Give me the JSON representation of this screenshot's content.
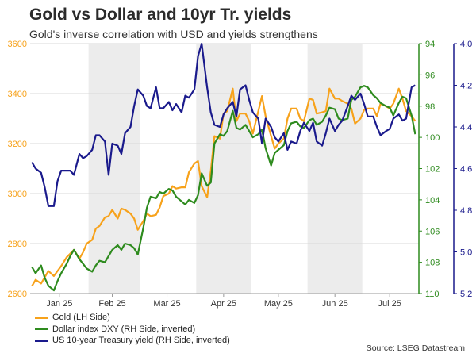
{
  "title": "Gold vs Dollar and 10yr Tr. yields",
  "subtitle": "Gold's inverse correlation with USD and yields strengthens",
  "source": "Source: LSEG Datastream",
  "colors": {
    "gold": "#f7a21b",
    "dxy": "#2e8b1e",
    "yield": "#1a1a8c",
    "shade": "#ececec",
    "grid": "#d9d9d9"
  },
  "chart_data": {
    "type": "line",
    "x": [
      "2025-01-01",
      "2025-01-03",
      "2025-01-06",
      "2025-01-08",
      "2025-01-10",
      "2025-01-13",
      "2025-01-15",
      "2025-01-17",
      "2025-01-20",
      "2025-01-22",
      "2025-01-24",
      "2025-01-27",
      "2025-01-29",
      "2025-01-31",
      "2025-02-03",
      "2025-02-05",
      "2025-02-07",
      "2025-02-10",
      "2025-02-12",
      "2025-02-14",
      "2025-02-17",
      "2025-02-19",
      "2025-02-21",
      "2025-02-24",
      "2025-02-26",
      "2025-02-28",
      "2025-03-03",
      "2025-03-05",
      "2025-03-07",
      "2025-03-10",
      "2025-03-12",
      "2025-03-14",
      "2025-03-17",
      "2025-03-19",
      "2025-03-21",
      "2025-03-24",
      "2025-03-26",
      "2025-03-28",
      "2025-03-31",
      "2025-04-02",
      "2025-04-04",
      "2025-04-07",
      "2025-04-09",
      "2025-04-11",
      "2025-04-14",
      "2025-04-16",
      "2025-04-18",
      "2025-04-21",
      "2025-04-23",
      "2025-04-25",
      "2025-04-28",
      "2025-04-30",
      "2025-05-02",
      "2025-05-05",
      "2025-05-07",
      "2025-05-09",
      "2025-05-12",
      "2025-05-14",
      "2025-05-16",
      "2025-05-19",
      "2025-05-21",
      "2025-05-23",
      "2025-05-26",
      "2025-05-28",
      "2025-05-30",
      "2025-06-02",
      "2025-06-04",
      "2025-06-06",
      "2025-06-09",
      "2025-06-11",
      "2025-06-13",
      "2025-06-16",
      "2025-06-18",
      "2025-06-20",
      "2025-06-23",
      "2025-06-25",
      "2025-06-27",
      "2025-06-30",
      "2025-07-02",
      "2025-07-04",
      "2025-07-07",
      "2025-07-09",
      "2025-07-11",
      "2025-07-14",
      "2025-07-16",
      "2025-07-18",
      "2025-07-21",
      "2025-07-23",
      "2025-07-25",
      "2025-07-28",
      "2025-07-30"
    ],
    "x_ticks": [
      {
        "date": "2025-01-16",
        "label": "Jan 25"
      },
      {
        "date": "2025-02-14",
        "label": "Feb 25"
      },
      {
        "date": "2025-03-16",
        "label": "Mar 25"
      },
      {
        "date": "2025-04-16",
        "label": "Apr 25"
      },
      {
        "date": "2025-05-16",
        "label": "May 25"
      },
      {
        "date": "2025-06-16",
        "label": "Jun 25"
      },
      {
        "date": "2025-07-16",
        "label": "Jul 25"
      }
    ],
    "x_range": [
      "2024-12-31",
      "2025-08-01"
    ],
    "shaded_months": [
      [
        "2025-02-01",
        "2025-03-01"
      ],
      [
        "2025-04-01",
        "2025-05-01"
      ],
      [
        "2025-06-01",
        "2025-07-01"
      ]
    ],
    "axes": {
      "left": {
        "label": "Gold (LH Side)",
        "ylim": [
          2600,
          3600
        ],
        "ticks": [
          2600,
          2800,
          3000,
          3200,
          3400,
          3600
        ],
        "color": "#f7a21b",
        "inverted": false
      },
      "right1": {
        "label": "Dollar index DXY (RH Side, inverted)",
        "ylim": [
          94,
          110
        ],
        "ticks": [
          94,
          96,
          98,
          100,
          102,
          104,
          106,
          108,
          110
        ],
        "color": "#2e8b1e",
        "inverted": true
      },
      "right2": {
        "label": "US 10-year Treasury yield (RH Side, inverted)",
        "ylim": [
          4.0,
          5.2
        ],
        "ticks": [
          "4.0",
          "4.2",
          "4.4",
          "4.6",
          "4.8",
          "5.0",
          "5.2"
        ],
        "color": "#1a1a8c",
        "inverted": true
      }
    },
    "series": [
      {
        "name": "Gold (LH Side)",
        "axis": "left",
        "key": "gold",
        "values": [
          2630,
          2655,
          2640,
          2665,
          2690,
          2670,
          2690,
          2710,
          2745,
          2760,
          2775,
          2740,
          2765,
          2800,
          2815,
          2860,
          2870,
          2905,
          2910,
          2935,
          2900,
          2940,
          2935,
          2920,
          2900,
          2855,
          2890,
          2920,
          2910,
          2915,
          2945,
          2990,
          3000,
          3030,
          3020,
          3025,
          3025,
          3085,
          3120,
          3130,
          3030,
          2985,
          3090,
          3230,
          3220,
          3320,
          3330,
          3420,
          3290,
          3320,
          3320,
          3290,
          3240,
          3330,
          3390,
          3310,
          3230,
          3180,
          3200,
          3220,
          3300,
          3340,
          3340,
          3300,
          3290,
          3380,
          3375,
          3320,
          3325,
          3330,
          3420,
          3380,
          3380,
          3370,
          3360,
          3340,
          3280,
          3300,
          3335,
          3340,
          3340,
          3310,
          3360,
          3350,
          3340,
          3360,
          3420,
          3380,
          3330,
          3310,
          3290
        ]
      },
      {
        "name": "Dollar index DXY (RH Side, inverted)",
        "axis": "right1",
        "key": "dxy",
        "values": [
          108.3,
          108.7,
          108.2,
          109.0,
          109.5,
          109.8,
          109.2,
          108.7,
          108.1,
          107.6,
          107.2,
          107.8,
          108.1,
          108.4,
          108.6,
          108.2,
          107.9,
          108.0,
          107.6,
          107.2,
          106.9,
          107.2,
          106.8,
          106.9,
          107.1,
          107.5,
          105.8,
          104.5,
          103.8,
          103.9,
          103.5,
          103.6,
          103.3,
          103.4,
          103.8,
          104.1,
          104.3,
          104.0,
          104.2,
          103.7,
          102.3,
          103.1,
          102.9,
          100.4,
          99.8,
          99.9,
          99.6,
          98.3,
          99.4,
          99.5,
          99.2,
          99.6,
          100.0,
          99.8,
          99.5,
          100.7,
          101.8,
          101.0,
          100.8,
          100.5,
          99.6,
          99.1,
          99.0,
          99.3,
          99.4,
          98.9,
          98.8,
          99.2,
          99.0,
          98.6,
          98.1,
          98.2,
          98.8,
          98.9,
          98.8,
          97.6,
          97.4,
          96.8,
          96.7,
          96.8,
          97.3,
          97.5,
          97.8,
          98.0,
          98.1,
          98.6,
          97.8,
          97.4,
          97.5,
          98.6,
          99.8
        ]
      },
      {
        "name": "US 10-year Treasury yield (RH Side, inverted)",
        "axis": "right2",
        "key": "yield",
        "values": [
          4.57,
          4.6,
          4.62,
          4.69,
          4.78,
          4.78,
          4.66,
          4.61,
          4.61,
          4.61,
          4.63,
          4.53,
          4.55,
          4.54,
          4.51,
          4.44,
          4.44,
          4.47,
          4.63,
          4.48,
          4.49,
          4.53,
          4.43,
          4.4,
          4.3,
          4.22,
          4.25,
          4.3,
          4.31,
          4.21,
          4.31,
          4.31,
          4.28,
          4.32,
          4.29,
          4.33,
          4.25,
          4.26,
          4.22,
          4.06,
          4.0,
          4.21,
          4.33,
          4.39,
          4.4,
          4.34,
          4.31,
          4.28,
          4.35,
          4.22,
          4.2,
          4.27,
          4.33,
          4.36,
          4.48,
          4.36,
          4.4,
          4.45,
          4.47,
          4.43,
          4.51,
          4.47,
          4.48,
          4.42,
          4.38,
          4.42,
          4.38,
          4.47,
          4.49,
          4.43,
          4.36,
          4.42,
          4.39,
          4.37,
          4.3,
          4.25,
          4.27,
          4.24,
          4.29,
          4.35,
          4.35,
          4.4,
          4.44,
          4.42,
          4.41,
          4.36,
          4.34,
          4.37,
          4.36,
          4.21,
          4.2
        ]
      }
    ]
  }
}
